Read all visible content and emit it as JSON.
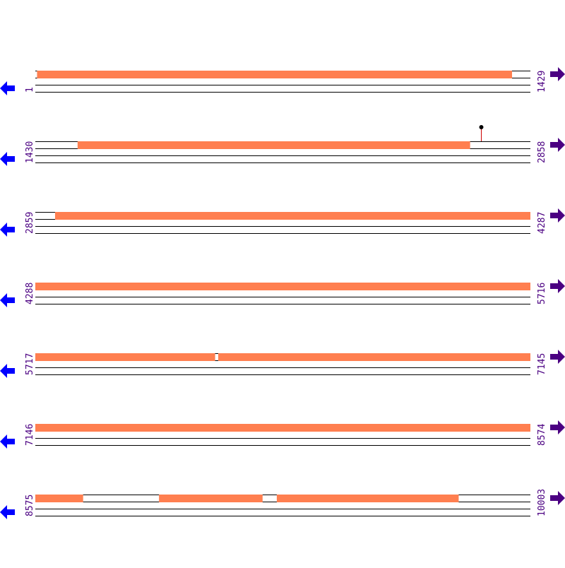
{
  "colors": {
    "feature": "#ff7f50",
    "line": "#000000",
    "label": "#4b0082",
    "left_arrow": "#0000ff",
    "right_arrow": "#4b0082",
    "marker_stem": "#cc0000",
    "marker_head": "#000000"
  },
  "rows": [
    {
      "start": 1,
      "end": 1429,
      "features": [
        [
          6,
          1376
        ]
      ],
      "markers": []
    },
    {
      "start": 1430,
      "end": 2858,
      "features": [
        [
          1552,
          2684
        ]
      ],
      "markers": [
        2717
      ]
    },
    {
      "start": 2859,
      "end": 4287,
      "features": [
        [
          2916,
          4287
        ]
      ],
      "markers": []
    },
    {
      "start": 4288,
      "end": 5716,
      "features": [
        [
          4288,
          5716
        ]
      ],
      "markers": []
    },
    {
      "start": 5717,
      "end": 7145,
      "features": [
        [
          5717,
          6235
        ],
        [
          6245,
          7145
        ]
      ],
      "markers": []
    },
    {
      "start": 7146,
      "end": 8574,
      "features": [
        [
          7146,
          8574
        ]
      ],
      "markers": []
    },
    {
      "start": 8575,
      "end": 10003,
      "features": [
        [
          8575,
          8712
        ],
        [
          8932,
          9230
        ],
        [
          9272,
          9796
        ]
      ],
      "markers": []
    }
  ]
}
